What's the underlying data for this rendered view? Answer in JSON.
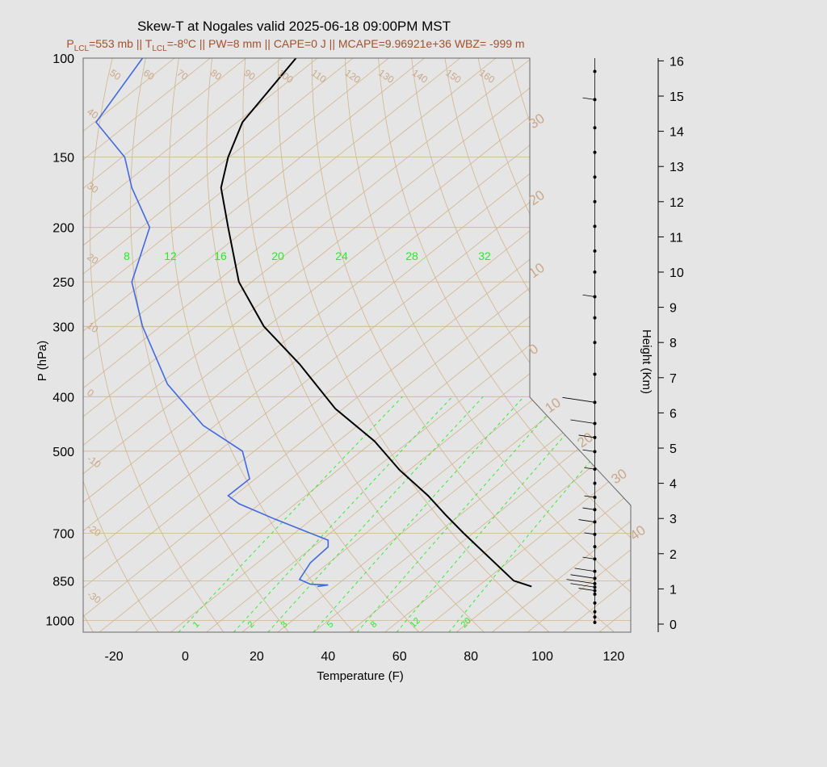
{
  "title": "Skew-T at Nogales valid 2025-06-18 09:00PM MST",
  "subtitle": {
    "plcl_sym": "P",
    "plcl_sub": "LCL",
    "plcl_val": "=553 mb || ",
    "tlcl_sym": "T",
    "tlcl_sub": "LCL",
    "tlcl_val": "=-8",
    "tlcl_deg": "o",
    "rest": "C || PW=8 mm || CAPE=0 J || MCAPE=9.96921e+36 WBZ= -999 m"
  },
  "axes": {
    "ylabel": "P (hPa)",
    "xlabel": "Temperature (F)",
    "height_label": "Height (Km)",
    "pressure_ticks": [
      "100",
      "150",
      "200",
      "250",
      "300",
      "400",
      "500",
      "700",
      "850",
      "1000"
    ],
    "temp_ticks": [
      "-20",
      "0",
      "20",
      "40",
      "60",
      "80",
      "100",
      "120"
    ],
    "height_ticks": [
      "0",
      "1",
      "2",
      "3",
      "4",
      "5",
      "6",
      "7",
      "8",
      "9",
      "10",
      "11",
      "12",
      "13",
      "14",
      "15",
      "16"
    ],
    "isotherm_labels_top": [
      "50",
      "60",
      "70",
      "80",
      "90",
      "100",
      "110",
      "120",
      "130",
      "140",
      "150",
      "160"
    ],
    "isotherm_labels_left": [
      "40",
      "30",
      "20",
      "10",
      "0",
      "-10",
      "-20",
      "-30"
    ],
    "isotherm_labels_right": [
      "30",
      "20",
      "10",
      "0",
      "10",
      "20",
      "30",
      "40"
    ],
    "mixing_ratio_top": [
      "8",
      "12",
      "16",
      "20",
      "24",
      "28",
      "32"
    ],
    "mixing_ratio_bottom": [
      "1",
      "2",
      "3",
      "5",
      "8",
      "12",
      "20"
    ]
  },
  "colors": {
    "background": "#e5e5e5",
    "isotherm": "#d2b48c",
    "mixing_ratio": "#22ee22",
    "temperature": "#000000",
    "dewpoint": "#4169e1",
    "subtitle": "#a0522d"
  },
  "chart_data": {
    "type": "line",
    "title": "Skew-T at Nogales valid 2025-06-18 09:00PM MST",
    "xlabel": "Temperature (F)",
    "ylabel": "P (hPa)",
    "xlim": [
      -28,
      125
    ],
    "ylim": [
      1050,
      100
    ],
    "y_scale": "log",
    "series": [
      {
        "key": "temperature",
        "points": [
          [
            97,
            870
          ],
          [
            92,
            850
          ],
          [
            82,
            740
          ],
          [
            78,
            700
          ],
          [
            73,
            650
          ],
          [
            68,
            600
          ],
          [
            60,
            540
          ],
          [
            53,
            480
          ],
          [
            42,
            420
          ],
          [
            32,
            350
          ],
          [
            22,
            300
          ],
          [
            15,
            250
          ],
          [
            12,
            200
          ],
          [
            10,
            170
          ],
          [
            12,
            150
          ],
          [
            16,
            130
          ],
          [
            31,
            100
          ]
        ]
      },
      {
        "key": "dewpoint",
        "points": [
          [
            37,
            870
          ],
          [
            40,
            865
          ],
          [
            35,
            862
          ],
          [
            32,
            845
          ],
          [
            35,
            790
          ],
          [
            40,
            740
          ],
          [
            40,
            720
          ],
          [
            25,
            660
          ],
          [
            15,
            620
          ],
          [
            12,
            600
          ],
          [
            18,
            560
          ],
          [
            16,
            500
          ],
          [
            5,
            450
          ],
          [
            -5,
            380
          ],
          [
            -12,
            300
          ],
          [
            -15,
            250
          ],
          [
            -10,
            200
          ],
          [
            -15,
            170
          ],
          [
            -17,
            150
          ],
          [
            -25,
            130
          ],
          [
            -12,
            100
          ]
        ]
      }
    ],
    "wind_profile_km": [
      [
        0.05,
        0
      ],
      [
        0.2,
        0
      ],
      [
        0.35,
        0
      ],
      [
        0.6,
        0
      ],
      [
        0.85,
        0
      ],
      [
        0.95,
        10
      ],
      [
        1.05,
        20
      ],
      [
        1.15,
        25
      ],
      [
        1.3,
        20
      ],
      [
        1.5,
        15
      ],
      [
        1.85,
        5
      ],
      [
        2.2,
        0
      ],
      [
        2.55,
        3
      ],
      [
        2.9,
        10
      ],
      [
        3.25,
        5
      ],
      [
        3.6,
        3
      ],
      [
        4.0,
        0
      ],
      [
        4.4,
        3
      ],
      [
        4.9,
        5
      ],
      [
        5.3,
        10
      ],
      [
        5.7,
        20
      ],
      [
        6.3,
        30
      ],
      [
        7.1,
        0
      ],
      [
        8.0,
        0
      ],
      [
        8.7,
        0
      ],
      [
        9.3,
        5
      ],
      [
        10.0,
        0
      ],
      [
        10.6,
        0
      ],
      [
        11.3,
        0
      ],
      [
        12.0,
        0
      ],
      [
        12.7,
        0
      ],
      [
        13.4,
        0
      ],
      [
        14.1,
        0
      ],
      [
        14.9,
        5
      ],
      [
        15.7,
        0
      ]
    ]
  }
}
